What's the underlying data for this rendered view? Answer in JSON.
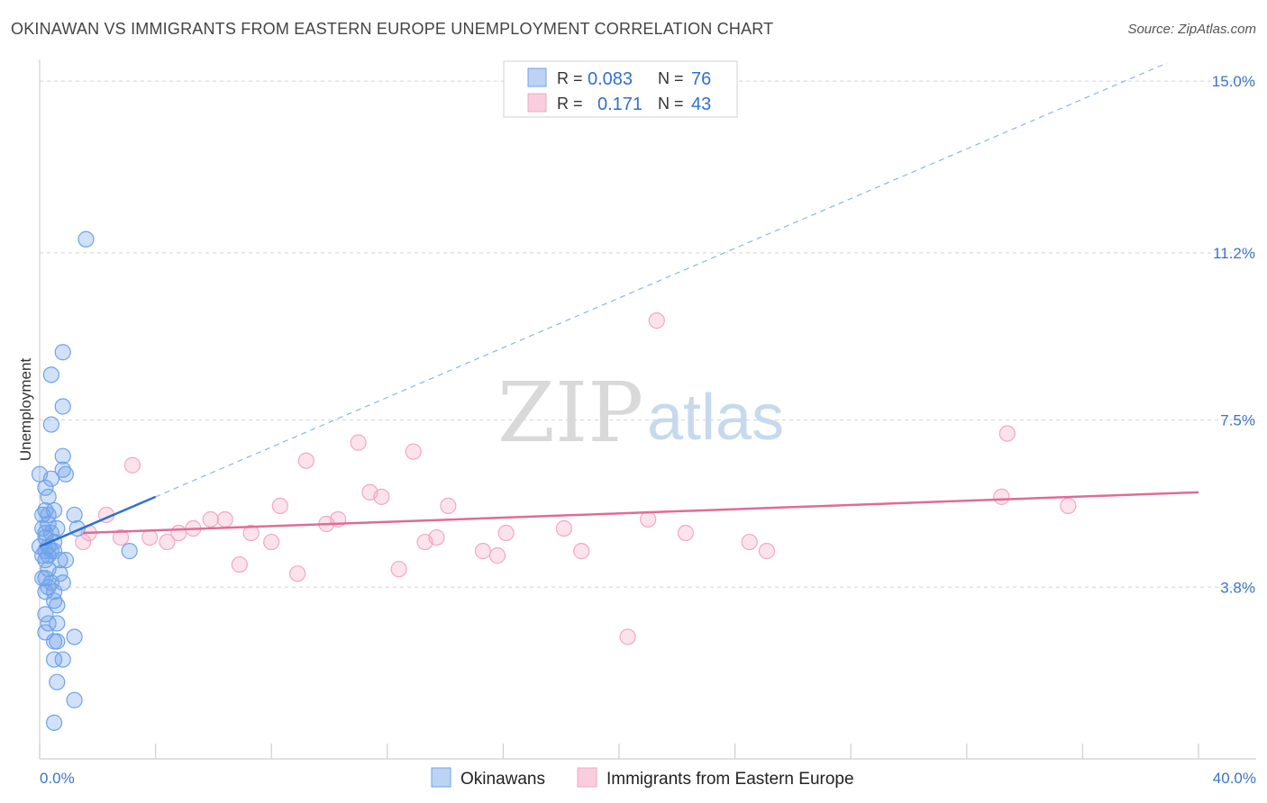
{
  "title": "OKINAWAN VS IMMIGRANTS FROM EASTERN EUROPE UNEMPLOYMENT CORRELATION CHART",
  "source": "Source: ZipAtlas.com",
  "watermark": {
    "zip": "ZIP",
    "atlas": "atlas"
  },
  "legend_top": {
    "rows": [
      {
        "r_label": "R =",
        "r_value": "0.083",
        "n_label": "N =",
        "n_value": "76"
      },
      {
        "r_label": "R =",
        "r_value": "0.171",
        "n_label": "N =",
        "n_value": "43"
      }
    ]
  },
  "legend_bottom": {
    "items": [
      "Okinawans",
      "Immigrants from Eastern Europe"
    ]
  },
  "colors": {
    "blue": "#6fa3ea",
    "blue_line": "#2f6fd1",
    "pink": "#f4a7c1",
    "pink_line": "#e06b97",
    "grid": "#d5d5d5"
  },
  "chart_data": {
    "type": "scatter",
    "title": "OKINAWAN VS IMMIGRANTS FROM EASTERN EUROPE UNEMPLOYMENT CORRELATION CHART",
    "ylabel": "Unemployment",
    "xlabel": "",
    "xlim": [
      0,
      40
    ],
    "ylim": [
      0,
      15.4
    ],
    "x_tick_labels": [
      "0.0%",
      "40.0%"
    ],
    "y_ticks": [
      3.8,
      7.5,
      11.2,
      15.0
    ],
    "y_tick_labels": [
      "3.8%",
      "7.5%",
      "11.2%",
      "15.0%"
    ],
    "series": [
      {
        "name": "Okinawans",
        "r": 0.083,
        "n": 76,
        "trend": {
          "x": [
            0.0,
            4.0
          ],
          "y": [
            4.7,
            5.8
          ]
        },
        "points": [
          [
            1.6,
            11.5
          ],
          [
            0.8,
            9.0
          ],
          [
            0.4,
            8.5
          ],
          [
            0.8,
            7.8
          ],
          [
            0.4,
            7.4
          ],
          [
            0.8,
            6.7
          ],
          [
            0.0,
            6.3
          ],
          [
            0.4,
            6.2
          ],
          [
            0.9,
            6.3
          ],
          [
            0.8,
            6.4
          ],
          [
            0.2,
            6.0
          ],
          [
            0.3,
            5.8
          ],
          [
            0.5,
            5.5
          ],
          [
            0.2,
            5.5
          ],
          [
            0.1,
            5.4
          ],
          [
            0.3,
            5.4
          ],
          [
            1.2,
            5.4
          ],
          [
            0.3,
            5.2
          ],
          [
            0.6,
            5.1
          ],
          [
            0.1,
            5.1
          ],
          [
            0.2,
            5.0
          ],
          [
            0.4,
            5.0
          ],
          [
            1.3,
            5.1
          ],
          [
            0.2,
            4.9
          ],
          [
            0.5,
            4.8
          ],
          [
            0.0,
            4.7
          ],
          [
            0.3,
            4.7
          ],
          [
            0.2,
            4.6
          ],
          [
            0.4,
            4.6
          ],
          [
            0.5,
            4.6
          ],
          [
            3.1,
            4.6
          ],
          [
            0.1,
            4.5
          ],
          [
            0.3,
            4.5
          ],
          [
            0.7,
            4.4
          ],
          [
            0.9,
            4.4
          ],
          [
            0.2,
            4.4
          ],
          [
            0.3,
            4.2
          ],
          [
            0.7,
            4.1
          ],
          [
            0.1,
            4.0
          ],
          [
            0.2,
            4.0
          ],
          [
            0.4,
            3.9
          ],
          [
            0.8,
            3.9
          ],
          [
            0.3,
            3.8
          ],
          [
            0.2,
            3.7
          ],
          [
            0.5,
            3.7
          ],
          [
            0.5,
            3.5
          ],
          [
            0.6,
            3.4
          ],
          [
            0.2,
            3.2
          ],
          [
            0.3,
            3.0
          ],
          [
            0.6,
            3.0
          ],
          [
            0.2,
            2.8
          ],
          [
            1.2,
            2.7
          ],
          [
            0.5,
            2.6
          ],
          [
            0.6,
            2.6
          ],
          [
            0.5,
            2.2
          ],
          [
            0.8,
            2.2
          ],
          [
            0.6,
            1.7
          ],
          [
            1.2,
            1.3
          ],
          [
            0.5,
            0.8
          ]
        ]
      },
      {
        "name": "Immigrants from Eastern Europe",
        "r": 0.171,
        "n": 43,
        "trend": {
          "x": [
            1.5,
            40.0
          ],
          "y": [
            5.0,
            5.9
          ]
        },
        "points": [
          [
            21.3,
            9.7
          ],
          [
            33.4,
            7.2
          ],
          [
            11.0,
            7.0
          ],
          [
            12.9,
            6.8
          ],
          [
            9.2,
            6.6
          ],
          [
            3.2,
            6.5
          ],
          [
            11.4,
            5.9
          ],
          [
            11.8,
            5.8
          ],
          [
            33.2,
            5.8
          ],
          [
            35.5,
            5.6
          ],
          [
            8.3,
            5.6
          ],
          [
            14.1,
            5.6
          ],
          [
            2.3,
            5.4
          ],
          [
            5.9,
            5.3
          ],
          [
            6.4,
            5.3
          ],
          [
            10.3,
            5.3
          ],
          [
            21.0,
            5.3
          ],
          [
            9.9,
            5.2
          ],
          [
            5.3,
            5.1
          ],
          [
            18.1,
            5.1
          ],
          [
            1.7,
            5.0
          ],
          [
            4.8,
            5.0
          ],
          [
            7.3,
            5.0
          ],
          [
            16.1,
            5.0
          ],
          [
            22.3,
            5.0
          ],
          [
            2.8,
            4.9
          ],
          [
            3.8,
            4.9
          ],
          [
            13.7,
            4.9
          ],
          [
            24.5,
            4.8
          ],
          [
            4.4,
            4.8
          ],
          [
            8.0,
            4.8
          ],
          [
            13.3,
            4.8
          ],
          [
            15.3,
            4.6
          ],
          [
            18.7,
            4.6
          ],
          [
            25.1,
            4.6
          ],
          [
            15.8,
            4.5
          ],
          [
            6.9,
            4.3
          ],
          [
            12.4,
            4.2
          ],
          [
            8.9,
            4.1
          ],
          [
            20.3,
            2.7
          ],
          [
            1.5,
            4.8
          ]
        ]
      }
    ]
  }
}
